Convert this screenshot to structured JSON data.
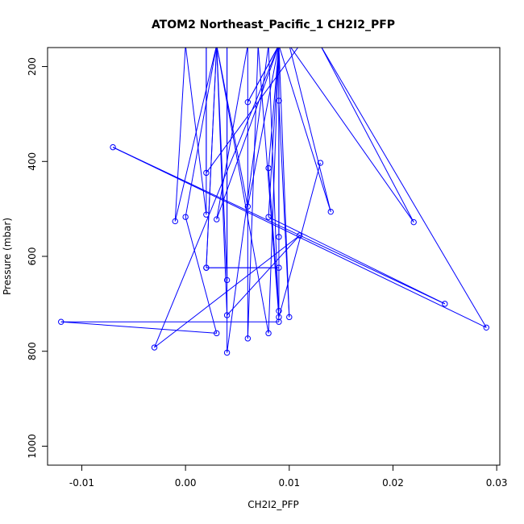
{
  "chart_data": {
    "type": "line",
    "title": "ATOM2 Northeast_Pacific_1 CH2I2_PFP",
    "xlabel": "CH2I2_PFP",
    "ylabel": "Pressure (mbar)",
    "xlim": [
      -0.0133,
      0.0303
    ],
    "ylim": [
      1040,
      160
    ],
    "y_reversed": true,
    "x_ticks": [
      -0.01,
      0.0,
      0.01,
      0.02,
      0.03
    ],
    "x_tick_labels": [
      "-0.01",
      "0.00",
      "0.01",
      "0.02",
      "0.03"
    ],
    "y_ticks": [
      200,
      400,
      600,
      800,
      1000
    ],
    "y_tick_labels": [
      "200",
      "400",
      "600",
      "800",
      "1000"
    ],
    "series_color": "#0000ff",
    "marker": "open-circle",
    "series": [
      {
        "points": [
          {
            "x": 0.013,
            "y": 403
          },
          {
            "x": 0.009,
            "y": 728
          },
          {
            "x": 0.007,
            "y": 155
          },
          {
            "x": 0.006,
            "y": 773
          },
          {
            "x": 0.006,
            "y": 155
          },
          {
            "x": 0.003,
            "y": 522
          },
          {
            "x": 0.009,
            "y": 155
          },
          {
            "x": 0.009,
            "y": 272
          },
          {
            "x": 0.01,
            "y": 728
          },
          {
            "x": 0.009,
            "y": 155
          },
          {
            "x": 0.008,
            "y": 517
          },
          {
            "x": 0.025,
            "y": 700
          },
          {
            "x": -0.007,
            "y": 370
          },
          {
            "x": 0.029,
            "y": 750
          },
          {
            "x": 0.013,
            "y": 155
          },
          {
            "x": 0.022,
            "y": 528
          },
          {
            "x": 0.01,
            "y": 155
          },
          {
            "x": 0.014,
            "y": 506
          },
          {
            "x": 0.009,
            "y": 155
          },
          {
            "x": 0.008,
            "y": 762
          },
          {
            "x": 0.003,
            "y": 155
          },
          {
            "x": 0.004,
            "y": 650
          },
          {
            "x": 0.004,
            "y": 155
          },
          {
            "x": 0.004,
            "y": 803
          },
          {
            "x": 0.008,
            "y": 155
          },
          {
            "x": 0.009,
            "y": 738
          },
          {
            "x": -0.012,
            "y": 738
          },
          {
            "x": 0.003,
            "y": 762
          },
          {
            "x": 0.0,
            "y": 517
          },
          {
            "x": 0.003,
            "y": 155
          },
          {
            "x": 0.002,
            "y": 624
          },
          {
            "x": 0.009,
            "y": 624
          },
          {
            "x": 0.002,
            "y": 624
          },
          {
            "x": 0.003,
            "y": 155
          },
          {
            "x": 0.004,
            "y": 724
          },
          {
            "x": 0.011,
            "y": 556
          },
          {
            "x": -0.003,
            "y": 792
          },
          {
            "x": 0.009,
            "y": 155
          },
          {
            "x": 0.009,
            "y": 559
          },
          {
            "x": 0.009,
            "y": 155
          },
          {
            "x": 0.008,
            "y": 414
          },
          {
            "x": 0.009,
            "y": 715
          },
          {
            "x": 0.009,
            "y": 155
          },
          {
            "x": 0.006,
            "y": 275
          },
          {
            "x": 0.009,
            "y": 155
          },
          {
            "x": 0.006,
            "y": 495
          },
          {
            "x": 0.003,
            "y": 155
          },
          {
            "x": -0.001,
            "y": 526
          },
          {
            "x": 0.0,
            "y": 155
          },
          {
            "x": 0.002,
            "y": 512
          },
          {
            "x": 0.002,
            "y": 155
          },
          {
            "x": 0.002,
            "y": 424
          },
          {
            "x": 0.011,
            "y": 155
          }
        ],
        "marked": [
          0,
          1,
          3,
          5,
          7,
          8,
          10,
          11,
          12,
          13,
          15,
          17,
          19,
          21,
          23,
          25,
          26,
          27,
          28,
          30,
          31,
          32,
          34,
          35,
          36,
          38,
          40,
          41,
          43,
          45,
          47,
          49,
          51
        ]
      }
    ]
  }
}
